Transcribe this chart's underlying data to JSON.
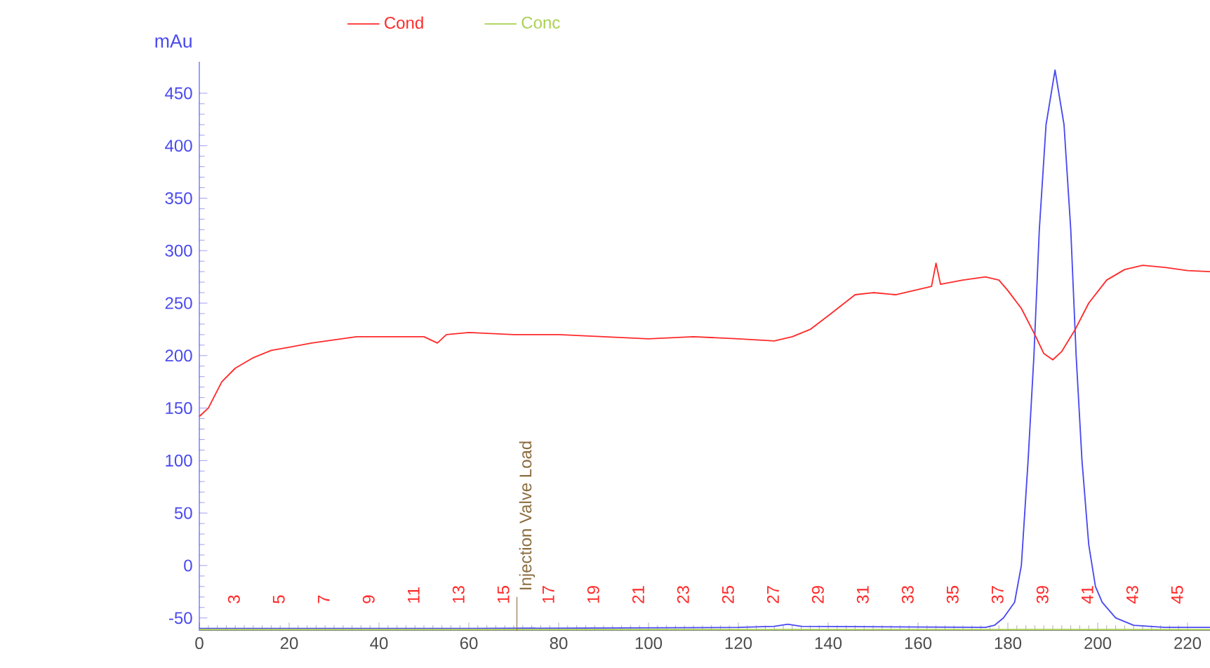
{
  "chart_data": {
    "type": "line",
    "ylabel": "mAu",
    "series": [
      {
        "color": "#4a4af0",
        "x": [
          0,
          60,
          120,
          128,
          131,
          134,
          175,
          177,
          179,
          181.5,
          183,
          184.5,
          185.8,
          187,
          188.5,
          190.5,
          192.5,
          194,
          195.2,
          196.5,
          198,
          199.5,
          201,
          204,
          208,
          215,
          225
        ],
        "values": [
          -60,
          -60,
          -59,
          -58,
          -56,
          -58,
          -59,
          -57,
          -50,
          -35,
          0,
          100,
          200,
          320,
          420,
          472,
          420,
          320,
          200,
          100,
          20,
          -20,
          -35,
          -50,
          -57,
          -59,
          -59
        ]
      },
      {
        "name": "Cond",
        "color": "#ff2a2a",
        "x": [
          0,
          2,
          5,
          8,
          12,
          16,
          20,
          25,
          30,
          35,
          40,
          50,
          53,
          55,
          60,
          70,
          80,
          90,
          100,
          110,
          120,
          128,
          132,
          136,
          140,
          143,
          146,
          150,
          155,
          160,
          163,
          164,
          165,
          170,
          175,
          178,
          180,
          183,
          186,
          188,
          190,
          192,
          195,
          198,
          202,
          206,
          210,
          215,
          220,
          225
        ],
        "values": [
          142,
          150,
          175,
          188,
          198,
          205,
          208,
          212,
          215,
          218,
          218,
          218,
          212,
          220,
          222,
          220,
          220,
          218,
          216,
          218,
          216,
          214,
          218,
          225,
          238,
          248,
          258,
          260,
          258,
          263,
          266,
          288,
          268,
          272,
          275,
          272,
          262,
          245,
          220,
          202,
          196,
          204,
          225,
          250,
          272,
          282,
          286,
          284,
          281,
          280
        ]
      },
      {
        "name": "Conc",
        "color": "#a8d050",
        "x": [
          0,
          225
        ],
        "values": [
          -61,
          -61
        ]
      }
    ],
    "xlim": [
      0,
      225
    ],
    "ylim": [
      -62,
      480
    ],
    "xticks": [
      0,
      20,
      40,
      60,
      80,
      100,
      120,
      140,
      160,
      180,
      200,
      220
    ],
    "yticks": [
      -50,
      0,
      50,
      100,
      150,
      200,
      250,
      300,
      350,
      400,
      450
    ],
    "ref_lines": [
      {
        "axis": "x",
        "value": 70.7,
        "label": "Injection Valve Load",
        "color": "#8b6b3d"
      }
    ],
    "annotations": [
      "3",
      "5",
      "7",
      "9",
      "11",
      "13",
      "15",
      "17",
      "19",
      "21",
      "23",
      "25",
      "27",
      "29",
      "31",
      "33",
      "35",
      "37",
      "39",
      "41",
      "43",
      "45"
    ],
    "legend": "top",
    "grid": false,
    "marker": "none",
    "line_style": "solid"
  }
}
